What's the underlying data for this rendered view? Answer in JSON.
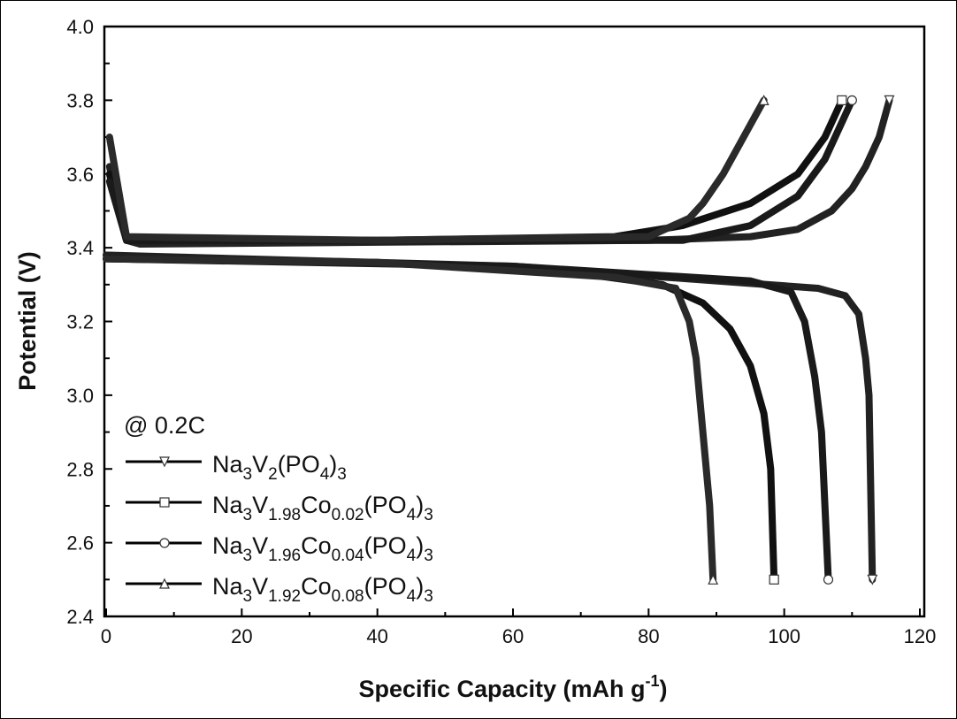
{
  "chart_data": {
    "type": "line",
    "title": "",
    "xlabel": "Specific Capacity (mAh g",
    "xlabel_sup": "-1",
    "xlabel_end": ")",
    "ylabel": "Potential (V)",
    "xlim": [
      0,
      120
    ],
    "ylim": [
      2.4,
      4.0
    ],
    "xticks": [
      0,
      20,
      40,
      60,
      80,
      100,
      120
    ],
    "yticks": [
      "2.4",
      "2.6",
      "2.8",
      "3.0",
      "3.2",
      "3.4",
      "3.6",
      "3.8",
      "4.0"
    ],
    "grid": false,
    "annotation": "@ 0.2C",
    "legend_position": "bottom-left",
    "series": [
      {
        "name": "Na3V2(PO4)3",
        "marker": "triangle-down",
        "label_parts": [
          [
            "Na",
            ""
          ],
          [
            "3",
            "sub"
          ],
          [
            "V",
            ""
          ],
          [
            "2",
            "sub"
          ],
          [
            "(PO",
            ""
          ],
          [
            "4",
            "sub"
          ],
          [
            ")",
            ""
          ],
          [
            "3",
            "sub"
          ]
        ],
        "charge": [
          [
            0.5,
            3.62
          ],
          [
            3,
            3.42
          ],
          [
            5,
            3.41
          ],
          [
            40,
            3.415
          ],
          [
            80,
            3.42
          ],
          [
            95,
            3.43
          ],
          [
            102,
            3.45
          ],
          [
            107,
            3.5
          ],
          [
            110,
            3.56
          ],
          [
            112,
            3.62
          ],
          [
            114,
            3.7
          ],
          [
            115.5,
            3.8
          ]
        ],
        "discharge": [
          [
            0,
            3.38
          ],
          [
            20,
            3.37
          ],
          [
            60,
            3.35
          ],
          [
            90,
            3.31
          ],
          [
            105,
            3.29
          ],
          [
            109,
            3.27
          ],
          [
            111,
            3.22
          ],
          [
            112,
            3.1
          ],
          [
            112.5,
            3.0
          ],
          [
            113,
            2.5
          ]
        ]
      },
      {
        "name": "Na3V1.98Co0.02(PO4)3",
        "marker": "square",
        "label_parts": [
          [
            "Na",
            ""
          ],
          [
            "3",
            "sub"
          ],
          [
            "V",
            ""
          ],
          [
            "1.98",
            "sub"
          ],
          [
            "Co",
            ""
          ],
          [
            "0.02",
            "sub"
          ],
          [
            "(PO",
            ""
          ],
          [
            "4",
            "sub"
          ],
          [
            ")",
            ""
          ],
          [
            "3",
            "sub"
          ]
        ],
        "charge": [
          [
            0.5,
            3.6
          ],
          [
            3,
            3.42
          ],
          [
            40,
            3.42
          ],
          [
            75,
            3.43
          ],
          [
            85,
            3.46
          ],
          [
            95,
            3.52
          ],
          [
            102,
            3.6
          ],
          [
            106,
            3.7
          ],
          [
            108.5,
            3.8
          ]
        ],
        "discharge": [
          [
            0,
            3.37
          ],
          [
            40,
            3.36
          ],
          [
            70,
            3.33
          ],
          [
            82,
            3.3
          ],
          [
            88,
            3.25
          ],
          [
            92,
            3.18
          ],
          [
            95,
            3.08
          ],
          [
            97,
            2.95
          ],
          [
            98,
            2.8
          ],
          [
            98.5,
            2.5
          ]
        ]
      },
      {
        "name": "Na3V1.96Co0.04(PO4)3",
        "marker": "circle",
        "label_parts": [
          [
            "Na",
            ""
          ],
          [
            "3",
            "sub"
          ],
          [
            "V",
            ""
          ],
          [
            "1.96",
            "sub"
          ],
          [
            "Co",
            ""
          ],
          [
            "0.04",
            "sub"
          ],
          [
            "(PO",
            ""
          ],
          [
            "4",
            "sub"
          ],
          [
            ")",
            ""
          ],
          [
            "3",
            "sub"
          ]
        ],
        "charge": [
          [
            0.5,
            3.58
          ],
          [
            3,
            3.42
          ],
          [
            60,
            3.42
          ],
          [
            85,
            3.42
          ],
          [
            95,
            3.46
          ],
          [
            102,
            3.54
          ],
          [
            106,
            3.64
          ],
          [
            110,
            3.8
          ]
        ],
        "discharge": [
          [
            0,
            3.37
          ],
          [
            60,
            3.35
          ],
          [
            95,
            3.31
          ],
          [
            101,
            3.28
          ],
          [
            103,
            3.2
          ],
          [
            104.5,
            3.05
          ],
          [
            105.5,
            2.9
          ],
          [
            106,
            2.7
          ],
          [
            106.5,
            2.5
          ]
        ]
      },
      {
        "name": "Na3V1.92Co0.08(PO4)3",
        "marker": "triangle-up",
        "label_parts": [
          [
            "Na",
            ""
          ],
          [
            "3",
            "sub"
          ],
          [
            "V",
            ""
          ],
          [
            "1.92",
            "sub"
          ],
          [
            "Co",
            ""
          ],
          [
            "0.08",
            "sub"
          ],
          [
            "(PO",
            ""
          ],
          [
            "4",
            "sub"
          ],
          [
            ")",
            ""
          ],
          [
            "3",
            "sub"
          ]
        ],
        "charge": [
          [
            0.5,
            3.7
          ],
          [
            3,
            3.43
          ],
          [
            40,
            3.42
          ],
          [
            80,
            3.43
          ],
          [
            86,
            3.48
          ],
          [
            88,
            3.52
          ],
          [
            91,
            3.6
          ],
          [
            94,
            3.7
          ],
          [
            97,
            3.8
          ]
        ],
        "discharge": [
          [
            0,
            3.37
          ],
          [
            40,
            3.36
          ],
          [
            75,
            3.32
          ],
          [
            84,
            3.29
          ],
          [
            86,
            3.2
          ],
          [
            87,
            3.1
          ],
          [
            88,
            2.9
          ],
          [
            89,
            2.7
          ],
          [
            89.5,
            2.5
          ]
        ]
      }
    ]
  }
}
